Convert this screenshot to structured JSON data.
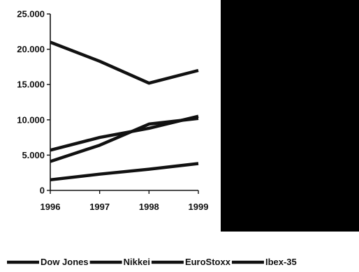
{
  "chart_data": {
    "type": "line",
    "x": [
      "1996",
      "1997",
      "1998",
      "1999"
    ],
    "y_ticks": [
      "0",
      "5.000",
      "10.000",
      "15.000",
      "20.000",
      "25.000"
    ],
    "ylim": [
      0,
      25000
    ],
    "grid": false,
    "legend_position": "bottom",
    "series": [
      {
        "name": "Dow Jones",
        "values": [
          5700,
          7500,
          8800,
          10500
        ]
      },
      {
        "name": "Nikkei",
        "values": [
          21000,
          18300,
          15200,
          17000
        ]
      },
      {
        "name": "EuroStoxx",
        "values": [
          4100,
          6400,
          9400,
          10200
        ]
      },
      {
        "name": "Ibex-35",
        "values": [
          1500,
          2300,
          3000,
          3800
        ]
      }
    ],
    "line_color": "#111111",
    "panel_color": "#000000"
  }
}
